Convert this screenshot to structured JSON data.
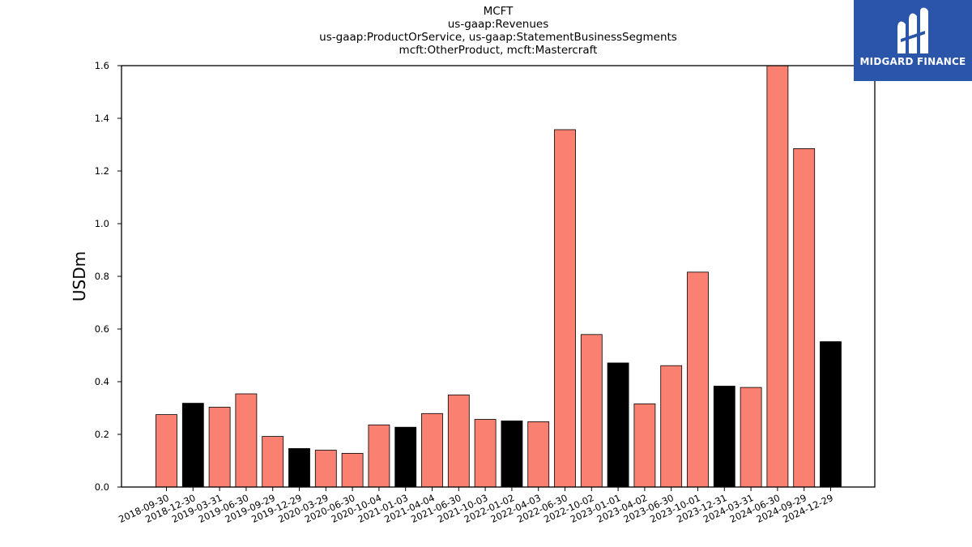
{
  "chart_data": {
    "type": "bar",
    "title_lines": [
      "MCFT",
      "us-gaap:Revenues",
      "us-gaap:ProductOrService, us-gaap:StatementBusinessSegments",
      "mcft:OtherProduct, mcft:Mastercraft"
    ],
    "ylabel": "USDm",
    "xlabel": "",
    "ylim": [
      0,
      1.6
    ],
    "yticks": [
      "0.0",
      "0.2",
      "0.4",
      "0.6",
      "0.8",
      "1.0",
      "1.2",
      "1.4",
      "1.6"
    ],
    "categories": [
      "2018-09-30",
      "2018-12-30",
      "2019-03-31",
      "2019-06-30",
      "2019-09-29",
      "2019-12-29",
      "2020-03-29",
      "2020-06-30",
      "2020-10-04",
      "2021-01-03",
      "2021-04-04",
      "2021-06-30",
      "2021-10-03",
      "2022-01-02",
      "2022-04-03",
      "2022-06-30",
      "2022-10-02",
      "2023-01-01",
      "2023-04-02",
      "2023-06-30",
      "2023-10-01",
      "2023-12-31",
      "2024-03-31",
      "2024-06-30",
      "2024-09-29",
      "2024-12-29"
    ],
    "values": [
      0.275,
      0.318,
      0.303,
      0.354,
      0.192,
      0.146,
      0.14,
      0.128,
      0.236,
      0.227,
      0.279,
      0.35,
      0.257,
      0.251,
      0.248,
      1.357,
      0.579,
      0.471,
      0.316,
      0.461,
      0.816,
      0.383,
      0.378,
      1.61,
      1.285,
      0.552
    ],
    "bar_colors": [
      "#fa8072",
      "#000000",
      "#fa8072",
      "#fa8072",
      "#fa8072",
      "#000000",
      "#fa8072",
      "#fa8072",
      "#fa8072",
      "#000000",
      "#fa8072",
      "#fa8072",
      "#fa8072",
      "#000000",
      "#fa8072",
      "#fa8072",
      "#fa8072",
      "#000000",
      "#fa8072",
      "#fa8072",
      "#fa8072",
      "#000000",
      "#fa8072",
      "#fa8072",
      "#fa8072",
      "#000000"
    ],
    "grid": false,
    "legend": "none"
  },
  "logo": {
    "text": "MIDGARD FINANCE",
    "background": "#2a55a8",
    "icon": "midgard-logo-icon"
  }
}
